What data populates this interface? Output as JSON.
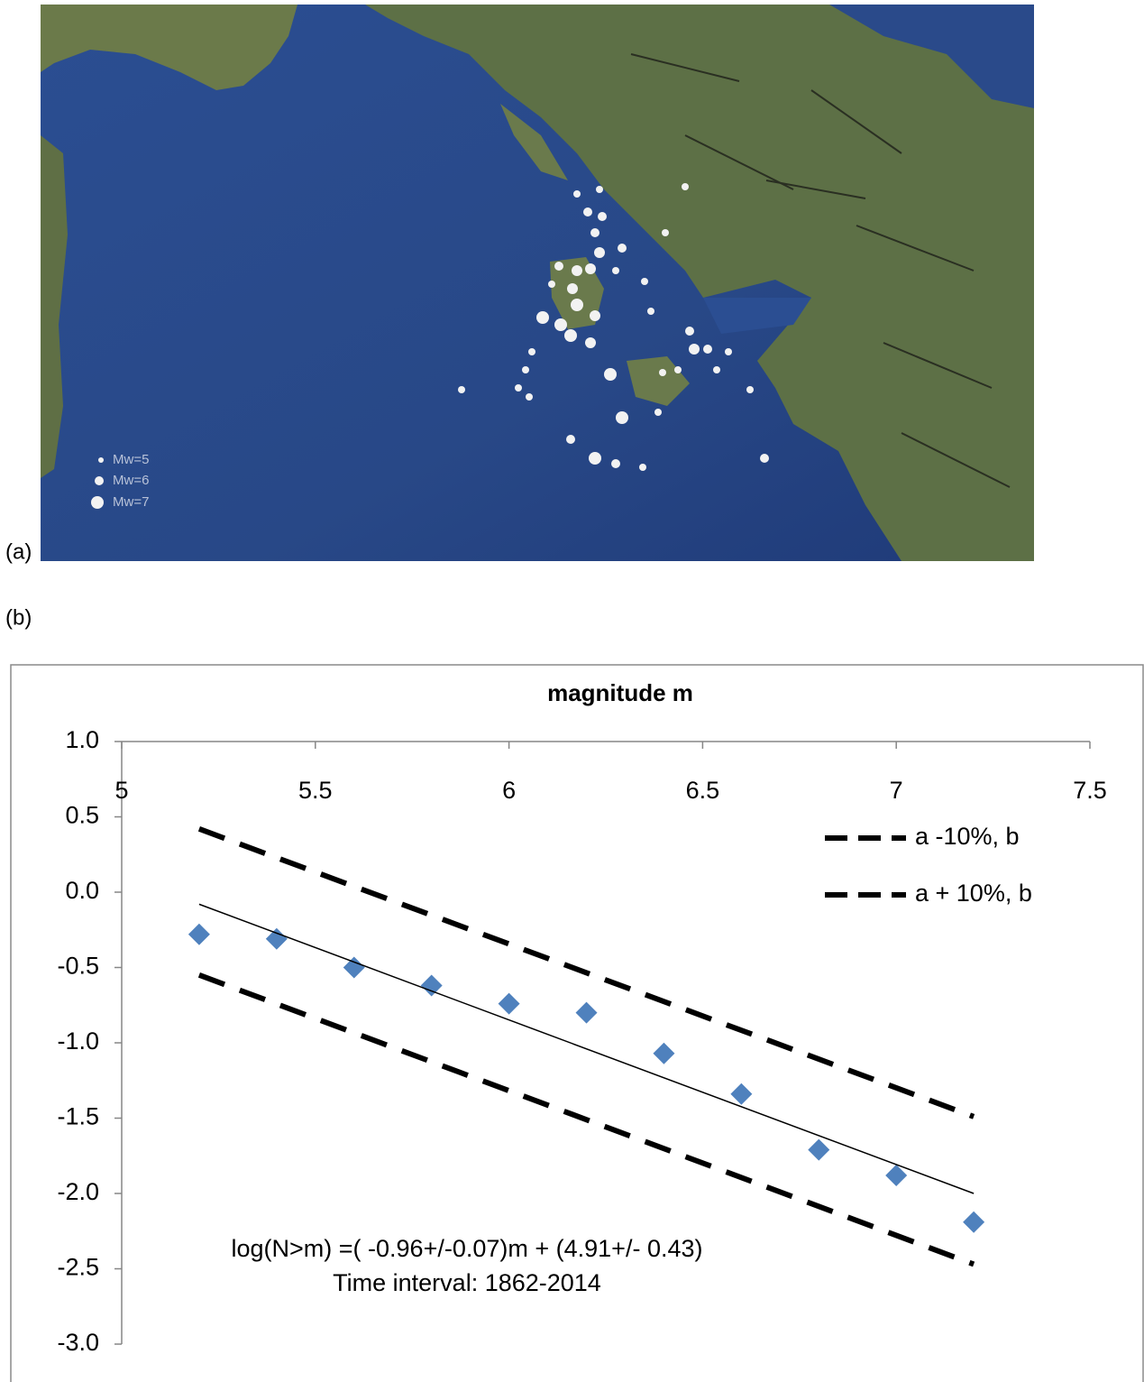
{
  "panels": {
    "a": "(a)",
    "b": "(b)"
  },
  "map": {
    "legend": [
      "Mw=5",
      "Mw=6",
      "Mw=7"
    ]
  },
  "chart_data": {
    "type": "scatter",
    "title": "magnitude m",
    "xlim": [
      5,
      7.5
    ],
    "xticks": [
      5,
      5.5,
      6,
      6.5,
      7,
      7.5
    ],
    "x_axis_position": "top",
    "ylim": [
      -3,
      1
    ],
    "yticks": [
      {
        "value": 1,
        "label": "1.0"
      },
      0.5,
      {
        "value": 0,
        "label": "0.0"
      },
      -0.5,
      {
        "value": -1,
        "label": "-1.0"
      },
      -1.5,
      {
        "value": -2,
        "label": "-2.0"
      },
      -2.5,
      {
        "value": -3,
        "label": "-3.0"
      }
    ],
    "legend": "upper right",
    "series": [
      {
        "style": "diamond",
        "color": "#4f81bd",
        "x": [
          5.2,
          5.4,
          5.6,
          5.8,
          6.0,
          6.2,
          6.4,
          6.6,
          6.8,
          7.0,
          7.2
        ],
        "values": [
          -0.28,
          -0.31,
          -0.5,
          -0.62,
          -0.74,
          -0.8,
          -1.07,
          -1.34,
          -1.71,
          -1.88,
          -2.19
        ]
      },
      {
        "style": "solid",
        "color": "#000000",
        "x": [
          5.2,
          7.2
        ],
        "values": [
          -0.08,
          -2.0
        ]
      },
      {
        "name": "a -10%, b",
        "style": "dashed",
        "color": "#000000",
        "x": [
          5.2,
          7.2
        ],
        "values": [
          -0.55,
          -2.47
        ]
      },
      {
        "name": "a + 10%, b",
        "style": "dashed",
        "color": "#000000",
        "x": [
          5.2,
          7.2
        ],
        "values": [
          0.42,
          -1.49
        ]
      }
    ],
    "annotations": [
      "log(N>m) =( -0.96+/-0.07)m + (4.91+/- 0.43)",
      "Time interval: 1862-2014"
    ]
  }
}
